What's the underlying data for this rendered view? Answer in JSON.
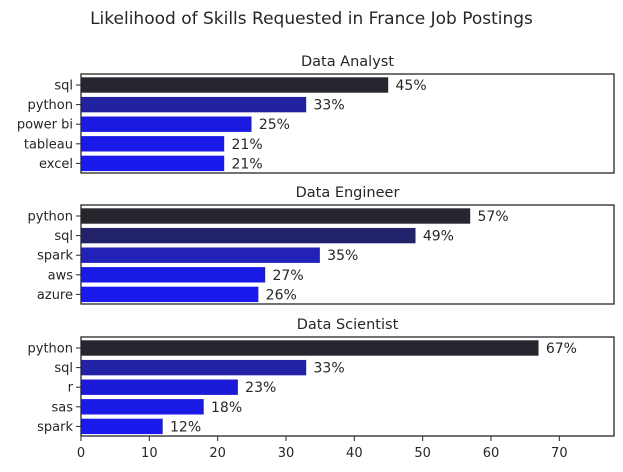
{
  "figure": {
    "title": "Likelihood of Skills Requested in France Job Postings"
  },
  "chart_data": [
    {
      "type": "bar",
      "orientation": "horizontal",
      "title": "Data Analyst",
      "categories": [
        "sql",
        "python",
        "power bi",
        "tableau",
        "excel"
      ],
      "values": [
        45,
        33,
        25,
        21,
        21
      ],
      "value_labels": [
        "45%",
        "33%",
        "25%",
        "21%",
        "21%"
      ],
      "colors": [
        "#26262e",
        "#2222a0",
        "#1a1ae0",
        "#1a1ae8",
        "#1a1aee"
      ],
      "xlim": [
        0,
        78
      ],
      "grid": false
    },
    {
      "type": "bar",
      "orientation": "horizontal",
      "title": "Data Engineer",
      "categories": [
        "python",
        "sql",
        "spark",
        "aws",
        "azure"
      ],
      "values": [
        57,
        49,
        35,
        27,
        26
      ],
      "value_labels": [
        "57%",
        "49%",
        "35%",
        "27%",
        "26%"
      ],
      "colors": [
        "#26262e",
        "#22226a",
        "#2222b8",
        "#1a1ae6",
        "#1a1aee"
      ],
      "xlim": [
        0,
        78
      ],
      "grid": false
    },
    {
      "type": "bar",
      "orientation": "horizontal",
      "title": "Data Scientist",
      "categories": [
        "python",
        "sql",
        "r",
        "sas",
        "spark"
      ],
      "values": [
        67,
        33,
        23,
        18,
        12
      ],
      "value_labels": [
        "67%",
        "33%",
        "23%",
        "18%",
        "12%"
      ],
      "colors": [
        "#26262e",
        "#2222a6",
        "#1a1ad8",
        "#1a1ae6",
        "#1a1aee"
      ],
      "xlim": [
        0,
        78
      ],
      "xticks": [
        "0",
        "10",
        "20",
        "30",
        "40",
        "50",
        "60",
        "70"
      ],
      "grid": false
    }
  ]
}
